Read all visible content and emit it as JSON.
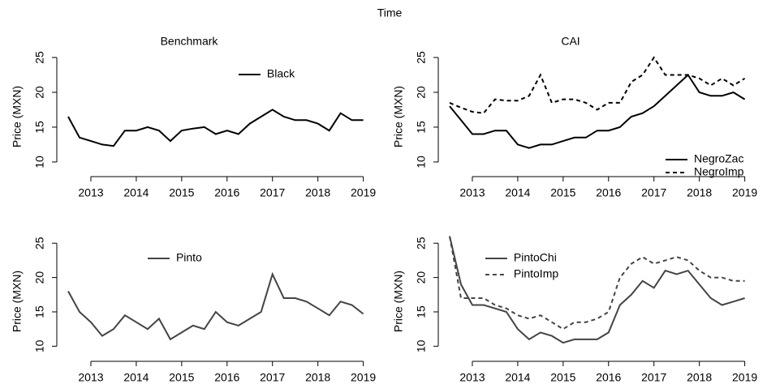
{
  "title": "Time",
  "chart_data": [
    {
      "type": "line",
      "title": "Benchmark",
      "ylabel": "Price (MXN)",
      "legend": "top-right",
      "xlim": [
        2012.25,
        2019.15
      ],
      "xticks": [
        2013,
        2014,
        2015,
        2016,
        2017,
        2018,
        2019
      ],
      "ylim": [
        7.9,
        28.6
      ],
      "yticks": [
        10,
        15,
        20,
        25
      ],
      "x": [
        2012.5,
        2012.75,
        2013,
        2013.25,
        2013.5,
        2013.75,
        2014,
        2014.25,
        2014.5,
        2014.75,
        2015,
        2015.25,
        2015.5,
        2015.75,
        2016,
        2016.25,
        2016.5,
        2016.75,
        2017,
        2017.25,
        2017.5,
        2017.75,
        2018,
        2018.25,
        2018.5,
        2018.75,
        2019
      ],
      "series": [
        {
          "name": "Black",
          "color": "#000000",
          "linestyle": "solid",
          "values": [
            16.5,
            13.5,
            13,
            12.5,
            12.3,
            14.5,
            14.5,
            15,
            14.5,
            13,
            14.5,
            14.8,
            15,
            14,
            14.5,
            14,
            15.5,
            16.5,
            17.5,
            16.5,
            16,
            16,
            15.5,
            14.5,
            17,
            16,
            16
          ]
        }
      ]
    },
    {
      "type": "line",
      "title": "CAI",
      "ylabel": "Price (MXN)",
      "legend": "bottom-right",
      "xlim": [
        2012.25,
        2019.15
      ],
      "xticks": [
        2013,
        2014,
        2015,
        2016,
        2017,
        2018,
        2019
      ],
      "ylim": [
        7.9,
        28.6
      ],
      "yticks": [
        10,
        15,
        20,
        25
      ],
      "x": [
        2012.5,
        2012.75,
        2013,
        2013.25,
        2013.5,
        2013.75,
        2014,
        2014.25,
        2014.5,
        2014.75,
        2015,
        2015.25,
        2015.5,
        2015.75,
        2016,
        2016.25,
        2016.5,
        2016.75,
        2017,
        2017.25,
        2017.5,
        2017.75,
        2018,
        2018.25,
        2018.5,
        2018.75,
        2019
      ],
      "series": [
        {
          "name": "NegroZac",
          "color": "#000000",
          "linestyle": "solid",
          "values": [
            18,
            16,
            14,
            14,
            14.5,
            14.5,
            12.5,
            12,
            12.5,
            12.5,
            13,
            13.5,
            13.5,
            14.5,
            14.5,
            15,
            16.5,
            17,
            18,
            19.5,
            21,
            22.5,
            20,
            19.5,
            19.5,
            20,
            19
          ]
        },
        {
          "name": "NegroImp",
          "color": "#000000",
          "linestyle": "dashed",
          "values": [
            18.5,
            17.8,
            17.2,
            17,
            19,
            18.8,
            18.8,
            19.5,
            22.5,
            18.5,
            19,
            19,
            18.5,
            17.5,
            18.5,
            18.5,
            21.5,
            22.5,
            25,
            22.5,
            22.5,
            22.5,
            22,
            21,
            22,
            21,
            22
          ]
        }
      ]
    },
    {
      "type": "line",
      "ylabel": "Price (MXN)",
      "legend": "top",
      "xlim": [
        2012.25,
        2019.15
      ],
      "xticks": [
        2013,
        2014,
        2015,
        2016,
        2017,
        2018,
        2019
      ],
      "ylim": [
        7.8,
        28.8
      ],
      "yticks": [
        10,
        15,
        20,
        25
      ],
      "x": [
        2012.5,
        2012.75,
        2013,
        2013.25,
        2013.5,
        2013.75,
        2014,
        2014.25,
        2014.5,
        2014.75,
        2015,
        2015.25,
        2015.5,
        2015.75,
        2016,
        2016.25,
        2016.5,
        2016.75,
        2017,
        2017.25,
        2017.5,
        2017.75,
        2018,
        2018.25,
        2018.5,
        2018.75,
        2019
      ],
      "series": [
        {
          "name": "Pinto",
          "color": "#444444",
          "linestyle": "solid",
          "values": [
            18,
            15,
            13.5,
            11.5,
            12.5,
            14.5,
            13.5,
            12.5,
            14,
            11,
            12,
            13,
            12.5,
            15,
            13.5,
            13,
            14,
            15,
            20.5,
            17,
            17,
            16.5,
            15.5,
            14.5,
            16.5,
            16,
            14.7
          ]
        }
      ]
    },
    {
      "type": "line",
      "ylabel": "Price (MXN)",
      "legend": "top-left",
      "xlim": [
        2012.25,
        2019.15
      ],
      "xticks": [
        2013,
        2014,
        2015,
        2016,
        2017,
        2018,
        2019
      ],
      "ylim": [
        7.8,
        28.8
      ],
      "yticks": [
        10,
        15,
        20,
        25
      ],
      "x": [
        2012.5,
        2012.75,
        2013,
        2013.25,
        2013.5,
        2013.75,
        2014,
        2014.25,
        2014.5,
        2014.75,
        2015,
        2015.25,
        2015.5,
        2015.75,
        2016,
        2016.25,
        2016.5,
        2016.75,
        2017,
        2017.25,
        2017.5,
        2017.75,
        2018,
        2018.25,
        2018.5,
        2018.75,
        2019
      ],
      "series": [
        {
          "name": "PintoChi",
          "color": "#444444",
          "linestyle": "solid",
          "values": [
            26,
            19,
            16,
            16,
            15.5,
            15,
            12.5,
            11,
            12,
            11.5,
            10.5,
            11,
            11,
            11,
            12,
            16,
            17.5,
            19.5,
            18.5,
            21,
            20.5,
            21,
            19,
            17,
            16,
            16.5,
            17
          ]
        },
        {
          "name": "PintoImp",
          "color": "#444444",
          "linestyle": "dashed",
          "values": [
            26,
            17,
            17,
            17,
            16,
            15.5,
            14.5,
            14,
            14.5,
            13.5,
            12.5,
            13.5,
            13.5,
            14,
            15,
            20,
            22,
            23,
            22,
            22.5,
            23,
            22.5,
            21,
            20,
            20,
            19.5,
            19.5
          ]
        }
      ]
    }
  ]
}
